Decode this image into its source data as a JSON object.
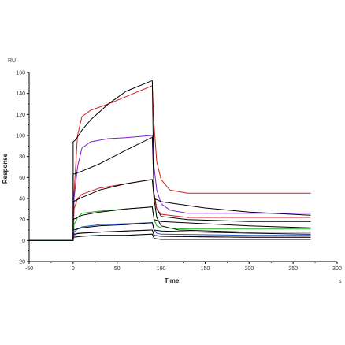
{
  "chart_data": {
    "type": "line",
    "xlabel": "Time",
    "ylabel": "Response",
    "y_unit": "RU",
    "x_unit": "s",
    "xlim": [
      -50,
      300
    ],
    "ylim": [
      -20,
      160
    ],
    "xticks": [
      -50,
      0,
      50,
      100,
      150,
      200,
      250,
      300
    ],
    "yticks": [
      -20,
      0,
      20,
      40,
      60,
      80,
      100,
      120,
      140,
      160
    ],
    "grid": false,
    "series": [
      {
        "color": "#cc2222",
        "values": [
          [
            -50,
            0
          ],
          [
            0,
            0
          ],
          [
            1,
            45
          ],
          [
            5,
            100
          ],
          [
            10,
            118
          ],
          [
            20,
            124
          ],
          [
            40,
            130
          ],
          [
            60,
            137
          ],
          [
            89,
            147
          ],
          [
            90,
            147
          ],
          [
            92,
            110
          ],
          [
            95,
            75
          ],
          [
            100,
            58
          ],
          [
            110,
            48
          ],
          [
            130,
            45
          ],
          [
            200,
            45
          ],
          [
            270,
            45
          ]
        ]
      },
      {
        "color": "#000000",
        "values": [
          [
            -50,
            0
          ],
          [
            0,
            0
          ],
          [
            0,
            94
          ],
          [
            3,
            96
          ],
          [
            10,
            105
          ],
          [
            20,
            115
          ],
          [
            40,
            130
          ],
          [
            60,
            142
          ],
          [
            89,
            152
          ],
          [
            90,
            152
          ],
          [
            92,
            40
          ],
          [
            95,
            22
          ],
          [
            100,
            14
          ],
          [
            120,
            10
          ],
          [
            200,
            8
          ],
          [
            270,
            8
          ]
        ]
      },
      {
        "color": "#7722cc",
        "values": [
          [
            -50,
            0
          ],
          [
            0,
            0
          ],
          [
            1,
            40
          ],
          [
            5,
            70
          ],
          [
            10,
            88
          ],
          [
            20,
            94
          ],
          [
            40,
            97
          ],
          [
            60,
            98
          ],
          [
            89,
            100
          ],
          [
            90,
            100
          ],
          [
            92,
            70
          ],
          [
            95,
            48
          ],
          [
            100,
            35
          ],
          [
            110,
            29
          ],
          [
            130,
            26
          ],
          [
            200,
            26
          ],
          [
            270,
            26
          ]
        ]
      },
      {
        "color": "#000000",
        "values": [
          [
            -50,
            0
          ],
          [
            0,
            0
          ],
          [
            0,
            63
          ],
          [
            10,
            66
          ],
          [
            30,
            73
          ],
          [
            60,
            86
          ],
          [
            89,
            98
          ],
          [
            90,
            98
          ],
          [
            92,
            45
          ],
          [
            95,
            30
          ],
          [
            100,
            23
          ],
          [
            130,
            20
          ],
          [
            200,
            18
          ],
          [
            270,
            18
          ]
        ]
      },
      {
        "color": "#cc2222",
        "values": [
          [
            -50,
            0
          ],
          [
            0,
            0
          ],
          [
            1,
            30
          ],
          [
            5,
            40
          ],
          [
            10,
            44
          ],
          [
            30,
            50
          ],
          [
            60,
            54
          ],
          [
            89,
            58
          ],
          [
            90,
            58
          ],
          [
            92,
            40
          ],
          [
            95,
            30
          ],
          [
            100,
            25
          ],
          [
            130,
            22
          ],
          [
            200,
            22
          ],
          [
            270,
            22
          ]
        ]
      },
      {
        "color": "#000000",
        "values": [
          [
            -50,
            0
          ],
          [
            0,
            0
          ],
          [
            0,
            37
          ],
          [
            10,
            41
          ],
          [
            30,
            48
          ],
          [
            60,
            54
          ],
          [
            89,
            58
          ],
          [
            90,
            58
          ],
          [
            92,
            40
          ],
          [
            100,
            37
          ],
          [
            150,
            31
          ],
          [
            200,
            27
          ],
          [
            270,
            24
          ]
        ]
      },
      {
        "color": "#22aa22",
        "values": [
          [
            -50,
            0
          ],
          [
            0,
            0
          ],
          [
            1,
            15
          ],
          [
            5,
            22
          ],
          [
            10,
            26
          ],
          [
            30,
            28
          ],
          [
            60,
            30
          ],
          [
            89,
            32
          ],
          [
            90,
            32
          ],
          [
            92,
            20
          ],
          [
            95,
            14
          ],
          [
            100,
            12
          ],
          [
            130,
            11
          ],
          [
            200,
            11
          ],
          [
            270,
            11
          ]
        ]
      },
      {
        "color": "#000000",
        "values": [
          [
            -50,
            0
          ],
          [
            0,
            0
          ],
          [
            0,
            20
          ],
          [
            10,
            24
          ],
          [
            30,
            27
          ],
          [
            60,
            30
          ],
          [
            89,
            32
          ],
          [
            90,
            32
          ],
          [
            92,
            20
          ],
          [
            100,
            18
          ],
          [
            150,
            16
          ],
          [
            200,
            14
          ],
          [
            270,
            12
          ]
        ]
      },
      {
        "color": "#2255cc",
        "values": [
          [
            -50,
            0
          ],
          [
            0,
            0
          ],
          [
            1,
            8
          ],
          [
            5,
            11
          ],
          [
            10,
            13
          ],
          [
            30,
            15
          ],
          [
            60,
            16
          ],
          [
            89,
            17
          ],
          [
            90,
            17
          ],
          [
            92,
            10
          ],
          [
            95,
            7
          ],
          [
            100,
            6
          ],
          [
            200,
            5
          ],
          [
            270,
            5
          ]
        ]
      },
      {
        "color": "#000000",
        "values": [
          [
            -50,
            0
          ],
          [
            0,
            0
          ],
          [
            0,
            10
          ],
          [
            10,
            12
          ],
          [
            30,
            14
          ],
          [
            60,
            15
          ],
          [
            89,
            17
          ],
          [
            90,
            17
          ],
          [
            92,
            10
          ],
          [
            100,
            9
          ],
          [
            150,
            8
          ],
          [
            200,
            7
          ],
          [
            270,
            6
          ]
        ]
      },
      {
        "color": "#bb3399",
        "values": [
          [
            -50,
            0
          ],
          [
            0,
            0
          ],
          [
            1,
            5
          ],
          [
            5,
            7
          ],
          [
            30,
            8
          ],
          [
            60,
            9
          ],
          [
            89,
            10
          ],
          [
            90,
            10
          ],
          [
            92,
            5
          ],
          [
            100,
            4
          ],
          [
            200,
            3
          ],
          [
            270,
            3
          ]
        ]
      },
      {
        "color": "#000000",
        "values": [
          [
            -50,
            0
          ],
          [
            0,
            0
          ],
          [
            0,
            6
          ],
          [
            10,
            7
          ],
          [
            30,
            8
          ],
          [
            60,
            9
          ],
          [
            89,
            10
          ],
          [
            90,
            10
          ],
          [
            92,
            5
          ],
          [
            100,
            4
          ],
          [
            200,
            3
          ],
          [
            270,
            3
          ]
        ]
      },
      {
        "color": "#22aaaa",
        "values": [
          [
            -50,
            0
          ],
          [
            0,
            0
          ],
          [
            1,
            3
          ],
          [
            5,
            4
          ],
          [
            30,
            5
          ],
          [
            60,
            5
          ],
          [
            89,
            6
          ],
          [
            90,
            6
          ],
          [
            92,
            2
          ],
          [
            100,
            1
          ],
          [
            200,
            1
          ],
          [
            270,
            1
          ]
        ]
      },
      {
        "color": "#000000",
        "values": [
          [
            -50,
            0
          ],
          [
            0,
            0
          ],
          [
            0,
            3
          ],
          [
            10,
            4
          ],
          [
            30,
            5
          ],
          [
            60,
            5
          ],
          [
            89,
            6
          ],
          [
            90,
            6
          ],
          [
            92,
            2
          ],
          [
            100,
            1
          ],
          [
            200,
            1
          ],
          [
            270,
            1
          ]
        ]
      }
    ]
  }
}
